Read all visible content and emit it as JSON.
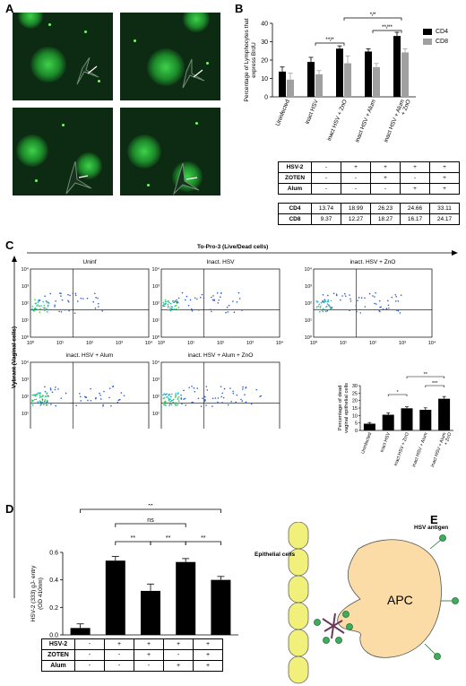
{
  "panel_labels": {
    "a": "A",
    "b": "B",
    "c": "C",
    "d": "D",
    "e": "E"
  },
  "panel_b": {
    "legend": [
      "CD4",
      "CD8"
    ],
    "colors": {
      "cd4": "#000000",
      "cd8": "#a0a0a0"
    },
    "sig": [
      "**/*",
      "*/*",
      "**/**"
    ],
    "table_rows": [
      {
        "label": "HSV-2",
        "cells": [
          "-",
          "+",
          "+",
          "+",
          "+"
        ]
      },
      {
        "label": "ZOTEN",
        "cells": [
          "-",
          "-",
          "+",
          "-",
          "+"
        ]
      },
      {
        "label": "Alum",
        "cells": [
          "-",
          "-",
          "-",
          "+",
          "+"
        ]
      }
    ],
    "value_rows": [
      {
        "label": "CD4",
        "cells": [
          "13.74",
          "18.99",
          "26.23",
          "24.66",
          "33.11"
        ]
      },
      {
        "label": "CD8",
        "cells": [
          "9.37",
          "12.27",
          "18.27",
          "16.17",
          "24.17"
        ]
      }
    ]
  },
  "panel_c": {
    "top_axis": "To-Pro-3 (Live/Dead cells)",
    "left_axis": "Vybrant (Vaginal cells)",
    "plot_titles": [
      "Uninf",
      "Inact. HSV",
      "inact. HSV + ZnO",
      "inact. HSV + Alum",
      "inact. HSV + Alum + ZnO"
    ],
    "bar_sig": [
      "*",
      "**",
      "***"
    ]
  },
  "panel_d": {
    "sig": [
      "ns",
      "**",
      "**",
      "**",
      "**",
      "**"
    ],
    "table_rows": [
      {
        "label": "HSV-2",
        "cells": [
          "-",
          "+",
          "+",
          "+",
          "+"
        ]
      },
      {
        "label": "ZOTEN",
        "cells": [
          "-",
          "-",
          "+",
          "-",
          "+"
        ]
      },
      {
        "label": "Alum",
        "cells": [
          "-",
          "-",
          "-",
          "+",
          "+"
        ]
      }
    ]
  },
  "panel_e": {
    "epithelial_label": "Epithelial cells",
    "apc_label": "APC",
    "antigen_label": "HSV antigen"
  },
  "chart_data": [
    {
      "type": "bar",
      "ylabel": "Percentage of Lymphocytes that express BrdU",
      "ylim": [
        0,
        40
      ],
      "yticks": [
        0,
        10,
        20,
        30,
        40
      ],
      "categories": [
        "Uninfected",
        "inact HSV",
        "inact HSV + ZnO",
        "inact HSV + Alum",
        "inact HSV + Alum + ZnO"
      ],
      "series": [
        {
          "name": "CD4",
          "values": [
            13.74,
            18.99,
            26.23,
            24.66,
            33.11
          ],
          "errors": [
            2.5,
            2.5,
            1.5,
            1.5,
            2
          ]
        },
        {
          "name": "CD8",
          "values": [
            9.37,
            12.27,
            18.27,
            16.17,
            24.17
          ],
          "errors": [
            3.5,
            2,
            4,
            2,
            2
          ]
        }
      ]
    },
    {
      "type": "bar",
      "ylabel": "Percentage of dead vaginal epithelial cells",
      "ylim": [
        0,
        30
      ],
      "yticks": [
        0,
        5,
        10,
        15,
        20,
        25,
        30
      ],
      "categories": [
        "Uninfected",
        "inact HSV",
        "inact HSV + ZnO",
        "inact HSV + Alum",
        "inact HSV + Alum + ZnO"
      ],
      "values": [
        4.5,
        10.5,
        14.8,
        13.8,
        21.2
      ],
      "errors": [
        0.8,
        1.3,
        1,
        1.3,
        1.5
      ]
    },
    {
      "type": "bar",
      "ylabel": "HSV-2 (333) gJ- entry (OD 410nm)",
      "ylim": [
        0,
        0.6
      ],
      "yticks": [
        0.0,
        0.2,
        0.4,
        0.6
      ],
      "categories": [
        "",
        "",
        "",
        "",
        ""
      ],
      "values": [
        0.05,
        0.54,
        0.32,
        0.53,
        0.4
      ],
      "errors": [
        0.03,
        0.03,
        0.05,
        0.025,
        0.025
      ]
    },
    {
      "type": "scatter",
      "xlabel": "To-Pro-3 (Live/Dead cells)",
      "ylabel": "Vybrant (Vaginal cells)",
      "xscale": "log",
      "yscale": "log",
      "xlim": [
        1,
        10000
      ],
      "ylim": [
        1,
        10000
      ],
      "xticks": [
        "10⁰",
        "10¹",
        "10²",
        "10³",
        "10⁴"
      ],
      "yticks": [
        "10⁰",
        "10¹",
        "10²",
        "10³",
        "10⁴"
      ],
      "plots": [
        "Uninf",
        "Inact. HSV",
        "inact. HSV + ZnO",
        "inact. HSV + Alum",
        "inact. HSV + Alum + ZnO"
      ]
    }
  ]
}
